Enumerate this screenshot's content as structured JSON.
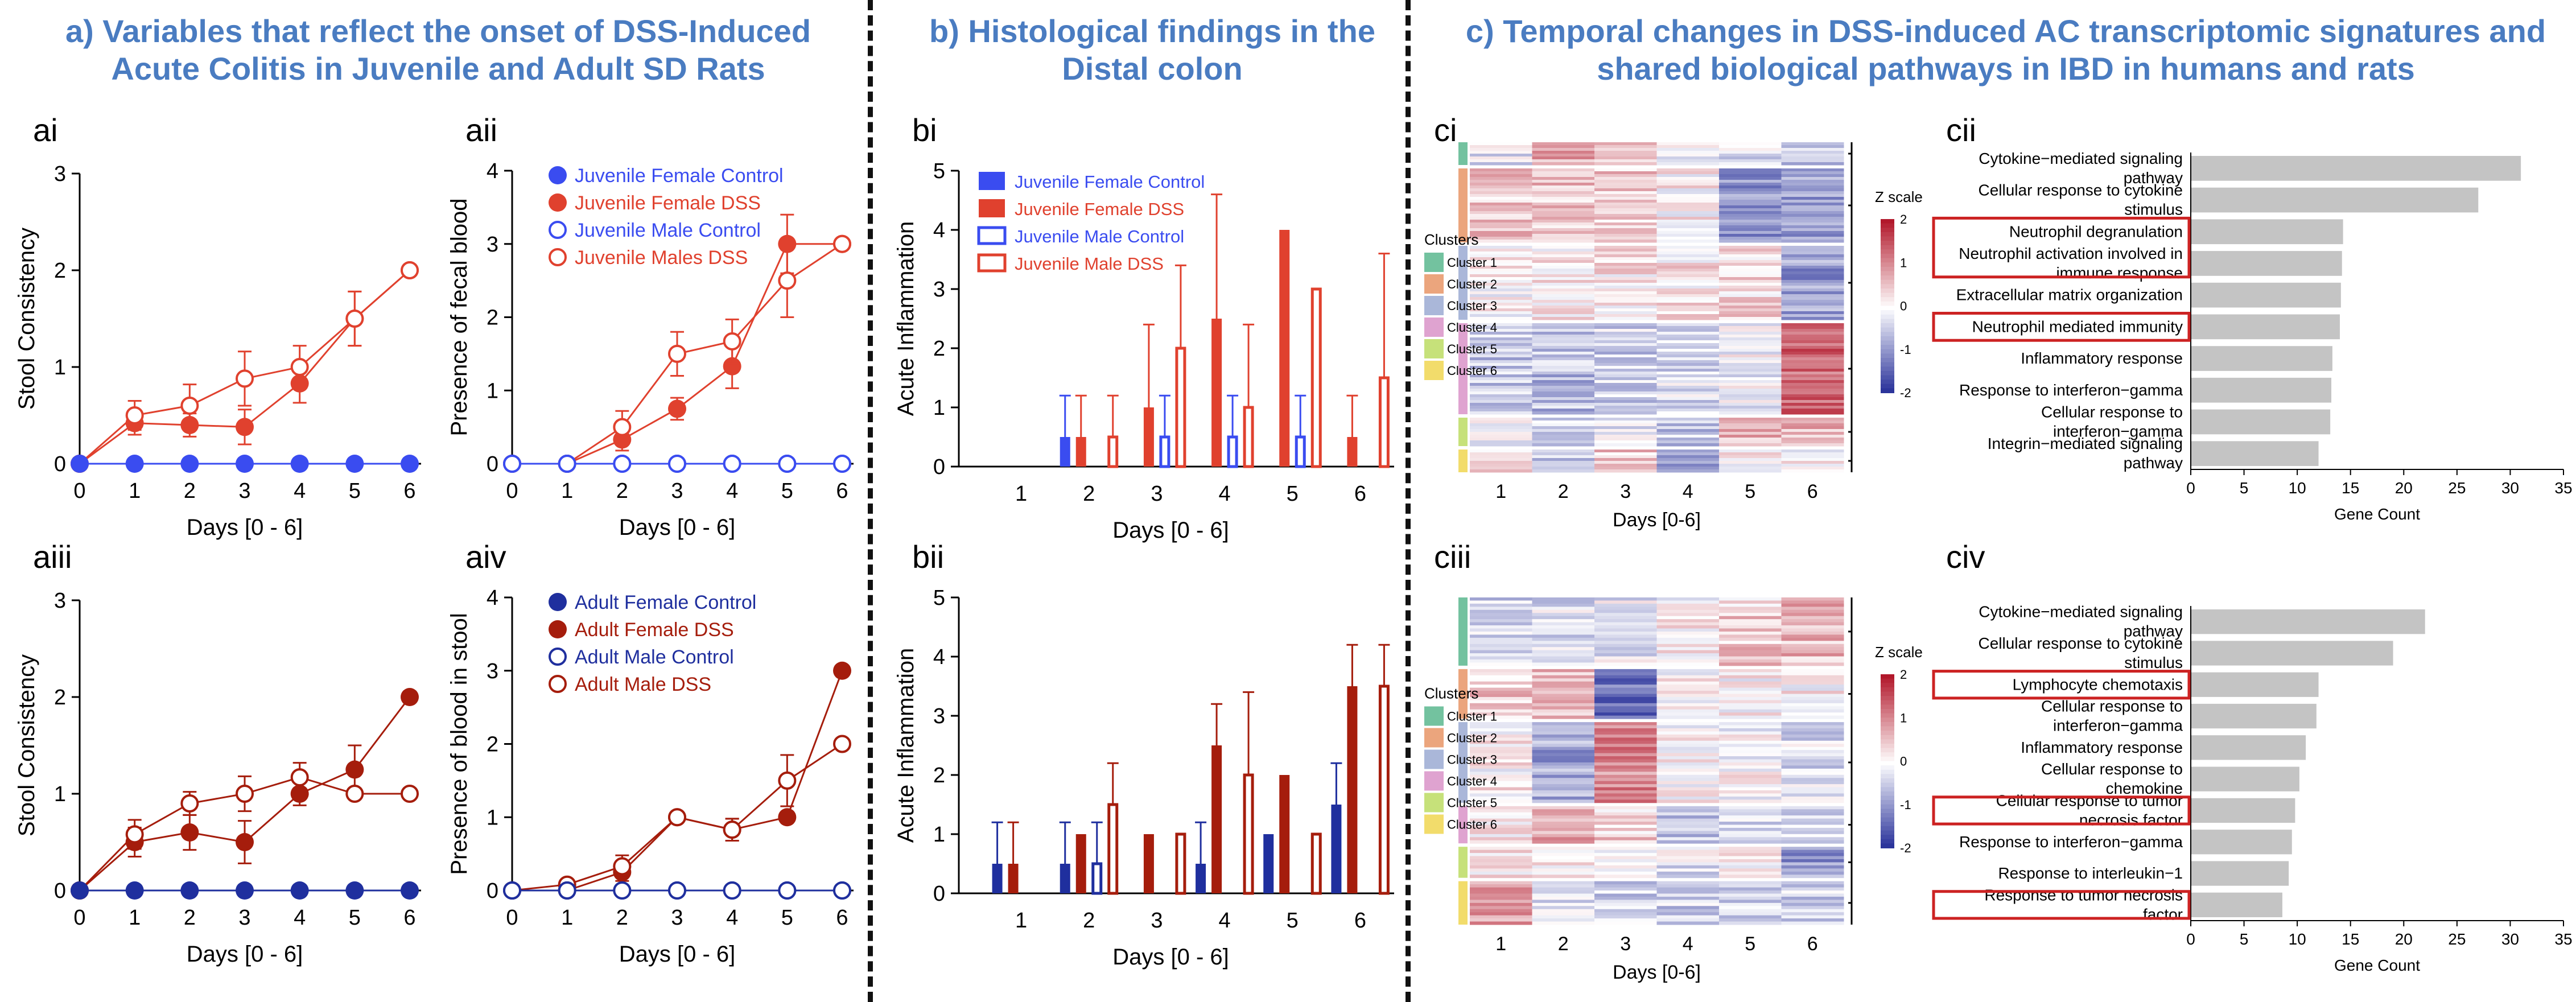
{
  "sections": {
    "a": "a) Variables that reflect the onset of DSS-Induced Acute Colitis in Juvenile and Adult SD Rats",
    "b": "b) Histological findings in the Distal colon",
    "c": "c) Temporal changes in DSS-induced AC transcriptomic signatures and shared biological pathways in IBD in humans and rats"
  },
  "section_lines": {
    "a": [
      "a) Variables that reflect the onset of DSS-Induced",
      "Acute Colitis in Juvenile and Adult SD Rats"
    ],
    "b": [
      "b) Histological findings in the",
      "Distal colon"
    ],
    "c": [
      "c) Temporal changes in DSS-induced AC transcriptomic signatures and",
      "shared biological pathways in IBD in humans and rats"
    ]
  },
  "colors": {
    "juvenile_control": "#3a4cf0",
    "juvenile_dss": "#e0412e",
    "adult_control": "#1f2f9e",
    "adult_dss": "#a51d0c",
    "bar_gray": "#c4c4c4",
    "highlight_box": "#cc2222",
    "section_title": "#4a7cc1"
  },
  "chart_data": [
    {
      "id": "ai",
      "type": "line",
      "panel_label": "ai",
      "xlabel": "Days [0 - 6]",
      "ylabel": "Stool Consistency",
      "ylim": [
        0,
        3
      ],
      "yticks": [
        0,
        1,
        2,
        3
      ],
      "x": [
        0,
        1,
        2,
        3,
        4,
        5,
        6
      ],
      "legend": null,
      "series": [
        {
          "group": "juvenile_control",
          "style": "filled",
          "values": [
            0,
            0,
            0,
            0,
            0,
            0,
            0
          ]
        },
        {
          "group": "juvenile_dss",
          "style": "filled",
          "values": [
            0,
            0.42,
            0.4,
            0.38,
            0.83,
            1.5,
            2
          ],
          "err": [
            0,
            0.12,
            0.12,
            0.18,
            0.2,
            0.28,
            0
          ]
        },
        {
          "group": "juvenile_dss",
          "style": "open",
          "values": [
            0,
            0.5,
            0.6,
            0.88,
            1,
            1.5,
            2
          ],
          "err": [
            0,
            0.15,
            0.22,
            0.28,
            0.22,
            0.28,
            0
          ]
        }
      ]
    },
    {
      "id": "aii",
      "type": "line",
      "panel_label": "aii",
      "xlabel": "Days [0 - 6]",
      "ylabel": "Presence of fecal blood",
      "ylim": [
        0,
        4
      ],
      "yticks": [
        0,
        1,
        2,
        3,
        4
      ],
      "x": [
        0,
        1,
        2,
        3,
        4,
        5,
        6
      ],
      "legend": "aii",
      "series": [
        {
          "name": "Juvenile Female Control",
          "group": "juvenile_control",
          "style": "filled",
          "values": [
            0,
            0,
            0,
            0,
            0,
            0,
            0
          ]
        },
        {
          "name": "Juvenile Female DSS",
          "group": "juvenile_dss",
          "style": "filled",
          "values": [
            0,
            0,
            0.33,
            0.75,
            1.33,
            3,
            3
          ],
          "err": [
            0,
            0,
            0.15,
            0.15,
            0.3,
            0.4,
            0
          ]
        },
        {
          "name": "Juvenile Male Control",
          "group": "juvenile_control",
          "style": "open",
          "values": [
            0,
            0,
            0,
            0,
            0,
            0,
            0
          ]
        },
        {
          "name": "Juvenile Males DSS",
          "group": "juvenile_dss",
          "style": "open",
          "values": [
            0,
            0,
            0.5,
            1.5,
            1.67,
            2.5,
            3
          ],
          "err": [
            0,
            0,
            0.22,
            0.3,
            0.3,
            0.5,
            0
          ]
        }
      ]
    },
    {
      "id": "aiii",
      "type": "line",
      "panel_label": "aiii",
      "xlabel": "Days [0 - 6]",
      "ylabel": "Stool Consistency",
      "ylim": [
        0,
        3
      ],
      "yticks": [
        0,
        1,
        2,
        3
      ],
      "x": [
        0,
        1,
        2,
        3,
        4,
        5,
        6
      ],
      "legend": null,
      "series": [
        {
          "group": "adult_control",
          "style": "filled",
          "values": [
            0,
            0,
            0,
            0,
            0,
            0,
            0
          ]
        },
        {
          "group": "adult_dss",
          "style": "filled",
          "values": [
            0,
            0.5,
            0.6,
            0.5,
            1,
            1.25,
            2
          ],
          "err": [
            0,
            0.15,
            0.18,
            0.22,
            0.12,
            0.25,
            0
          ]
        },
        {
          "group": "adult_dss",
          "style": "open",
          "values": [
            0,
            0.58,
            0.9,
            1,
            1.17,
            1,
            1
          ],
          "err": [
            0,
            0.15,
            0.12,
            0.18,
            0.15,
            0,
            0
          ]
        }
      ]
    },
    {
      "id": "aiv",
      "type": "line",
      "panel_label": "aiv",
      "xlabel": "Days [0 - 6]",
      "ylabel": "Presence of blood in stool",
      "ylim": [
        0,
        4
      ],
      "yticks": [
        0,
        1,
        2,
        3,
        4
      ],
      "x": [
        0,
        1,
        2,
        3,
        4,
        5,
        6
      ],
      "legend": "aiv",
      "series": [
        {
          "name": "Adult Female Control",
          "group": "adult_control",
          "style": "filled",
          "values": [
            0,
            0,
            0,
            0,
            0,
            0,
            0
          ]
        },
        {
          "name": "Adult Female DSS",
          "group": "adult_dss",
          "style": "filled",
          "values": [
            0,
            0,
            0.25,
            1,
            0.83,
            1,
            3
          ],
          "err": [
            0,
            0,
            0.12,
            0,
            0.15,
            0,
            0
          ]
        },
        {
          "name": "Adult Male Control",
          "group": "adult_control",
          "style": "open",
          "values": [
            0,
            0,
            0,
            0,
            0,
            0,
            0
          ]
        },
        {
          "name": "Adult Male DSS",
          "group": "adult_dss",
          "style": "open",
          "values": [
            0,
            0.08,
            0.33,
            1,
            0.83,
            1.5,
            2
          ],
          "err": [
            0,
            0.05,
            0.15,
            0,
            0.15,
            0.35,
            0
          ]
        }
      ]
    },
    {
      "id": "bi",
      "type": "bar",
      "panel_label": "bi",
      "xlabel": "Days [0 - 6]",
      "ylabel": "Acute Inflammation",
      "ylim": [
        0,
        5
      ],
      "yticks": [
        0,
        1,
        2,
        3,
        4,
        5
      ],
      "categories": [
        "1",
        "2",
        "3",
        "4",
        "5",
        "6"
      ],
      "legend": "bi",
      "series": [
        {
          "name": "Juvenile Female Control",
          "group": "juvenile_control",
          "style": "filled",
          "values": [
            0,
            0.5,
            0,
            0,
            0,
            0
          ],
          "err": [
            0,
            0.7,
            0,
            0,
            0,
            0
          ]
        },
        {
          "name": "Juvenile Female DSS",
          "group": "juvenile_dss",
          "style": "filled",
          "values": [
            0,
            0.5,
            1,
            2.5,
            4,
            0.5
          ],
          "err": [
            0,
            0.7,
            1.4,
            2.1,
            0,
            0.7
          ]
        },
        {
          "name": "Juvenile Male Control",
          "group": "juvenile_control",
          "style": "open",
          "values": [
            0,
            0,
            0.5,
            0.5,
            0.5,
            0
          ],
          "err": [
            0,
            0,
            0.7,
            0.7,
            0.7,
            0
          ]
        },
        {
          "name": "Juvenile Male DSS",
          "group": "juvenile_dss",
          "style": "open",
          "values": [
            0,
            0.5,
            2,
            1,
            3,
            1.5
          ],
          "err": [
            0,
            0.7,
            1.4,
            1.4,
            0,
            2.1
          ]
        }
      ]
    },
    {
      "id": "bii",
      "type": "bar",
      "panel_label": "bii",
      "xlabel": "Days [0 - 6]",
      "ylabel": "Acute Inflammation",
      "ylim": [
        0,
        5
      ],
      "yticks": [
        0,
        1,
        2,
        3,
        4,
        5
      ],
      "categories": [
        "1",
        "2",
        "3",
        "4",
        "5",
        "6"
      ],
      "legend": null,
      "series": [
        {
          "group": "adult_control",
          "style": "filled",
          "values": [
            0.5,
            0.5,
            0,
            0.5,
            1,
            1.5
          ],
          "err": [
            0.7,
            0.7,
            0,
            0.7,
            0,
            0.7
          ]
        },
        {
          "group": "adult_dss",
          "style": "filled",
          "values": [
            0.5,
            1,
            1,
            2.5,
            2,
            3.5
          ],
          "err": [
            0.7,
            0,
            0,
            0.7,
            0,
            0.7
          ]
        },
        {
          "group": "adult_control",
          "style": "open",
          "values": [
            0,
            0.5,
            0,
            0,
            0,
            0
          ],
          "err": [
            0,
            0.7,
            0,
            0,
            0,
            0
          ]
        },
        {
          "group": "adult_dss",
          "style": "open",
          "values": [
            0,
            1.5,
            1,
            2,
            1,
            3.5
          ],
          "err": [
            0,
            0.7,
            0,
            1.4,
            0,
            0.7
          ]
        }
      ]
    },
    {
      "id": "ci",
      "type": "heatmap",
      "panel_label": "ci",
      "xlabel": "Days [0-6]",
      "x": [
        "1",
        "2",
        "3",
        "4",
        "5",
        "6"
      ],
      "legend_title": "Clusters",
      "clusters": [
        {
          "name": "Cluster 1",
          "color": "#73c29f",
          "rows": 8,
          "means": [
            -0.2,
            0.7,
            0.3,
            -0.1,
            -0.3,
            -0.5
          ]
        },
        {
          "name": "Cluster 2",
          "color": "#eba57d",
          "rows": 26,
          "means": [
            0.5,
            0.5,
            0.4,
            0.1,
            -0.9,
            -0.9
          ]
        },
        {
          "name": "Cluster 3",
          "color": "#aab7d9",
          "rows": 26,
          "means": [
            0.1,
            0.2,
            0.2,
            0.2,
            0.3,
            -0.9
          ]
        },
        {
          "name": "Cluster 4",
          "color": "#dfa3d0",
          "rows": 32,
          "means": [
            -0.5,
            -0.6,
            -0.4,
            -0.3,
            -0.1,
            1.3
          ]
        },
        {
          "name": "Cluster 5",
          "color": "#c6e17a",
          "rows": 10,
          "means": [
            -0.2,
            -0.3,
            -0.2,
            -0.5,
            0.6,
            0.6
          ]
        },
        {
          "name": "Cluster 6",
          "color": "#f2dc6b",
          "rows": 8,
          "means": [
            0.2,
            -0.5,
            0.5,
            -0.7,
            0.1,
            0.1
          ]
        }
      ],
      "zscale": {
        "title": "Z scale",
        "ticks": [
          2,
          1,
          0,
          -1,
          -2
        ]
      }
    },
    {
      "id": "ciii",
      "type": "heatmap",
      "panel_label": "ciii",
      "xlabel": "Days [0-6]",
      "x": [
        "1",
        "2",
        "3",
        "4",
        "5",
        "6"
      ],
      "legend_title": "Clusters",
      "clusters": [
        {
          "name": "Cluster 1",
          "color": "#73c29f",
          "rows": 22,
          "means": [
            -0.4,
            -0.3,
            -0.2,
            0.1,
            0.4,
            0.6
          ]
        },
        {
          "name": "Cluster 2",
          "color": "#eba57d",
          "rows": 16,
          "means": [
            0.5,
            0.6,
            -1.3,
            0.1,
            0.1,
            0.1
          ]
        },
        {
          "name": "Cluster 3",
          "color": "#aab7d9",
          "rows": 26,
          "means": [
            0.1,
            -0.8,
            1.0,
            0.1,
            0,
            -0.3
          ]
        },
        {
          "name": "Cluster 4",
          "color": "#dfa3d0",
          "rows": 12,
          "means": [
            0.1,
            0.7,
            0.4,
            -0.6,
            -0.4,
            -0.3
          ]
        },
        {
          "name": "Cluster 5",
          "color": "#c6e17a",
          "rows": 10,
          "means": [
            0.2,
            0.2,
            0.1,
            -0.2,
            0.2,
            -0.9
          ]
        },
        {
          "name": "Cluster 6",
          "color": "#f2dc6b",
          "rows": 14,
          "means": [
            0.8,
            -0.3,
            -0.4,
            -0.4,
            -0.4,
            -0.4
          ]
        }
      ],
      "zscale": {
        "title": "Z scale",
        "ticks": [
          2,
          1,
          0,
          -1,
          -2
        ]
      }
    },
    {
      "id": "cii",
      "type": "bar",
      "orientation": "horizontal",
      "panel_label": "cii",
      "xlabel": "Gene Count",
      "xlim": [
        0,
        35
      ],
      "xticks": [
        0,
        5,
        10,
        15,
        20,
        25,
        30,
        35
      ],
      "categories": [
        [
          "Cytokine−mediated signaling",
          "pathway"
        ],
        [
          "Cellular response to cytokine",
          "stimulus"
        ],
        [
          "Neutrophil degranulation"
        ],
        [
          "Neutrophil activation involved in",
          "immune response"
        ],
        [
          "Extracellular matrix organization"
        ],
        [
          "Neutrophil mediated immunity"
        ],
        [
          "Inflammatory response"
        ],
        [
          "Response to interferon−gamma"
        ],
        [
          "Cellular response to",
          "interferon−gamma"
        ],
        [
          "Integrin−mediated signaling",
          "pathway"
        ]
      ],
      "values": [
        31,
        27,
        14.3,
        14.2,
        14.1,
        14,
        13.3,
        13.2,
        13.1,
        12
      ],
      "highlight_groups": [
        [
          2,
          3
        ],
        [
          5,
          5
        ]
      ]
    },
    {
      "id": "civ",
      "type": "bar",
      "orientation": "horizontal",
      "panel_label": "civ",
      "xlabel": "Gene Count",
      "xlim": [
        0,
        35
      ],
      "xticks": [
        0,
        5,
        10,
        15,
        20,
        25,
        30,
        35
      ],
      "categories": [
        [
          "Cytokine−mediated signaling",
          "pathway"
        ],
        [
          "Cellular response to cytokine",
          "stimulus"
        ],
        [
          "Lymphocyte chemotaxis"
        ],
        [
          "Cellular response to",
          "interferon−gamma"
        ],
        [
          "Inflammatory response"
        ],
        [
          "Cellular response to",
          "chemokine"
        ],
        [
          "Cellular response to tumor",
          "necrosis factor"
        ],
        [
          "Response to interferon−gamma"
        ],
        [
          "Response to interleukin−1"
        ],
        [
          "Response to tumor necrosis",
          "factor"
        ]
      ],
      "values": [
        22,
        19,
        12,
        11.8,
        10.8,
        10.2,
        9.8,
        9.5,
        9.2,
        8.6
      ],
      "highlight_groups": [
        [
          2,
          2
        ],
        [
          6,
          6
        ],
        [
          9,
          9
        ]
      ]
    }
  ]
}
